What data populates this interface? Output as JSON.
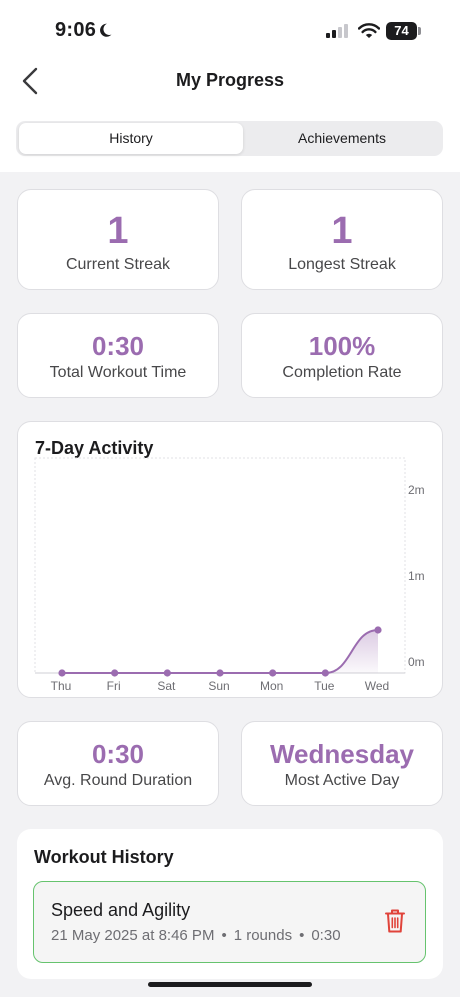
{
  "status_bar": {
    "time": "9:06",
    "battery": "74"
  },
  "nav": {
    "title": "My Progress"
  },
  "tabs": [
    {
      "label": "History",
      "selected": true
    },
    {
      "label": "Achievements",
      "selected": false
    }
  ],
  "stats": {
    "current_streak": {
      "value": "1",
      "label": "Current Streak"
    },
    "longest_streak": {
      "value": "1",
      "label": "Longest Streak"
    },
    "total_workout_time": {
      "value": "0:30",
      "label": "Total Workout Time"
    },
    "completion_rate": {
      "value": "100%",
      "label": "Completion Rate"
    },
    "avg_round_duration": {
      "value": "0:30",
      "label": "Avg. Round Duration"
    },
    "most_active_day": {
      "value": "Wednesday",
      "label": "Most Active Day"
    }
  },
  "chart_data": {
    "type": "area",
    "title": "7-Day Activity",
    "categories": [
      "Thu",
      "Fri",
      "Sat",
      "Sun",
      "Mon",
      "Tue",
      "Wed"
    ],
    "values": [
      0,
      0,
      0,
      0,
      0,
      0,
      0.5
    ],
    "y_unit": "minutes",
    "yticks": [
      "0m",
      "1m",
      "2m"
    ],
    "ylim": [
      0,
      2.5
    ],
    "y_axis_position": "right",
    "grid": false,
    "color": "#9b6cb0"
  },
  "workout_history": {
    "title": "Workout History",
    "items": [
      {
        "name": "Speed and Agility",
        "date": "21 May 2025 at 8:46 PM",
        "rounds": "1 rounds",
        "duration": "0:30",
        "sep": "•"
      }
    ]
  },
  "colors": {
    "accent": "#9b6cb0",
    "success_border": "#66c36e",
    "delete": "#e0433a"
  }
}
